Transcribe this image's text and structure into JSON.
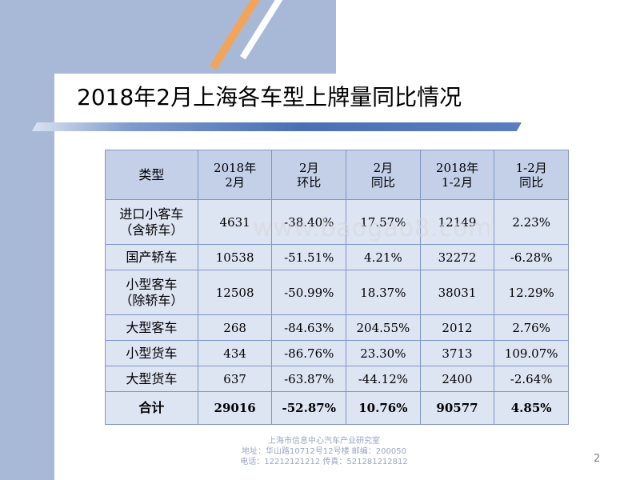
{
  "title": "2018年2月上海各车型上牌量同比情况",
  "table": {
    "headers": [
      "类型",
      "2018年\n2月",
      "2月\n环比",
      "2月\n同比",
      "2018年\n1-2月",
      "1-2月\n同比"
    ],
    "rows": [
      [
        "进口小客车\n（含轿车）",
        "4631",
        "-38.40%",
        "17.57%",
        "12149",
        "2.23%"
      ],
      [
        "国产轿车",
        "10538",
        "-51.51%",
        "4.21%",
        "32272",
        "-6.28%"
      ],
      [
        "小型客车\n（除轿车）",
        "12508",
        "-50.99%",
        "18.37%",
        "38031",
        "12.29%"
      ],
      [
        "大型客车",
        "268",
        "-84.63%",
        "204.55%",
        "2012",
        "2.76%"
      ],
      [
        "小型货车",
        "434",
        "-86.76%",
        "23.30%",
        "3713",
        "109.07%"
      ],
      [
        "大型货车",
        "637",
        "-63.87%",
        "-44.12%",
        "2400",
        "-2.64%"
      ]
    ],
    "total": [
      "合计",
      "29016",
      "-52.87%",
      "10.76%",
      "90577",
      "4.85%"
    ]
  },
  "watermark": "www.baogao8.com",
  "footer": {
    "line1": "上海市信息中心汽车产业研究室",
    "line2": "地址：华山路10712号12号楼    邮编：200050",
    "line3": "电话：12212121212  传真：521281212812"
  },
  "page_number": "2"
}
